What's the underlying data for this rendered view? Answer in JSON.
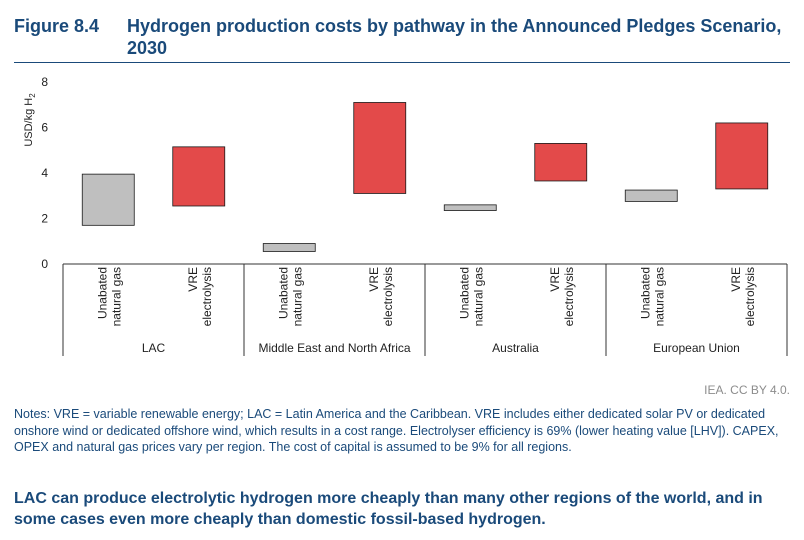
{
  "figure": {
    "label": "Figure 8.4",
    "title": "Hydrogen production costs by pathway in the Announced Pledges Scenario, 2030"
  },
  "chart_data": {
    "type": "floating-bar",
    "ylabel_main": "USD/kg H",
    "ylabel_sub": "2",
    "ylim": [
      0,
      8
    ],
    "yticks": [
      "0",
      "2",
      "4",
      "6",
      "8"
    ],
    "groups": [
      {
        "name": "LAC",
        "bars": [
          {
            "label_lines": [
              "Unabated",
              "natural gas"
            ],
            "low": 1.7,
            "high": 3.95,
            "kind": "gas"
          },
          {
            "label_lines": [
              "VRE",
              "electrolysis"
            ],
            "low": 2.55,
            "high": 5.15,
            "kind": "vre"
          }
        ]
      },
      {
        "name": "Middle East and North Africa",
        "bars": [
          {
            "label_lines": [
              "Unabated",
              "natural gas"
            ],
            "low": 0.55,
            "high": 0.9,
            "kind": "gas"
          },
          {
            "label_lines": [
              "VRE",
              "electrolysis"
            ],
            "low": 3.1,
            "high": 7.1,
            "kind": "vre"
          }
        ]
      },
      {
        "name": "Australia",
        "bars": [
          {
            "label_lines": [
              "Unabated",
              "natural gas"
            ],
            "low": 2.35,
            "high": 2.6,
            "kind": "gas"
          },
          {
            "label_lines": [
              "VRE",
              "electrolysis"
            ],
            "low": 3.65,
            "high": 5.3,
            "kind": "vre"
          }
        ]
      },
      {
        "name": "European Union",
        "bars": [
          {
            "label_lines": [
              "Unabated",
              "natural gas"
            ],
            "low": 2.75,
            "high": 3.25,
            "kind": "gas"
          },
          {
            "label_lines": [
              "VRE",
              "electrolysis"
            ],
            "low": 3.3,
            "high": 6.2,
            "kind": "vre"
          }
        ]
      }
    ],
    "colors": {
      "gas": "#bfbfbf",
      "vre": "#e34a4a",
      "outline": "#1a1a1a",
      "axis": "#333333"
    }
  },
  "credit": "IEA. CC BY 4.0.",
  "notes": "Notes: VRE = variable renewable energy; LAC = Latin America and the Caribbean. VRE includes either dedicated solar PV or dedicated onshore wind or dedicated offshore wind, which results in a cost range. Electrolyser efficiency is 69% (lower heating value [LHV]). CAPEX, OPEX and natural gas prices vary per region. The cost of capital is assumed to be 9% for all regions.",
  "takeaway": "LAC can produce electrolytic hydrogen more cheaply than many other regions of the world, and in some cases even more cheaply than domestic fossil-based hydrogen."
}
